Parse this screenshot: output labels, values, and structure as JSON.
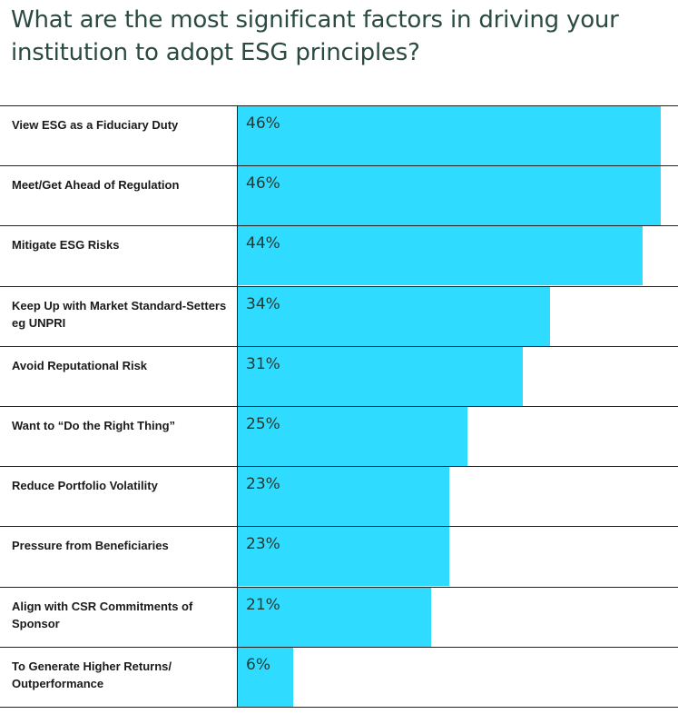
{
  "chart_data": {
    "type": "bar",
    "orientation": "horizontal",
    "title": "What are the most significant factors in driving your institution to adopt ESG principles?",
    "categories": [
      "View ESG as a Fiduciary Duty",
      "Meet/Get Ahead of Regulation",
      "Mitigate ESG Risks",
      "Keep Up with Market Standard-Setters eg UNPRI",
      "Avoid Reputational Risk",
      "Want to “Do the Right Thing”",
      "Reduce Portfolio Volatility",
      "Pressure from Beneficiaries",
      "Align with CSR Commitments of Sponsor",
      "To Generate Higher Returns/ Outperformance"
    ],
    "values": [
      46,
      46,
      44,
      34,
      31,
      25,
      23,
      23,
      21,
      6
    ],
    "value_labels": [
      "46%",
      "46%",
      "44%",
      "34%",
      "31%",
      "25%",
      "23%",
      "23%",
      "21%",
      "6%"
    ],
    "xlim": [
      0,
      46
    ],
    "grid": false,
    "bar_color": "#2fdcff"
  }
}
